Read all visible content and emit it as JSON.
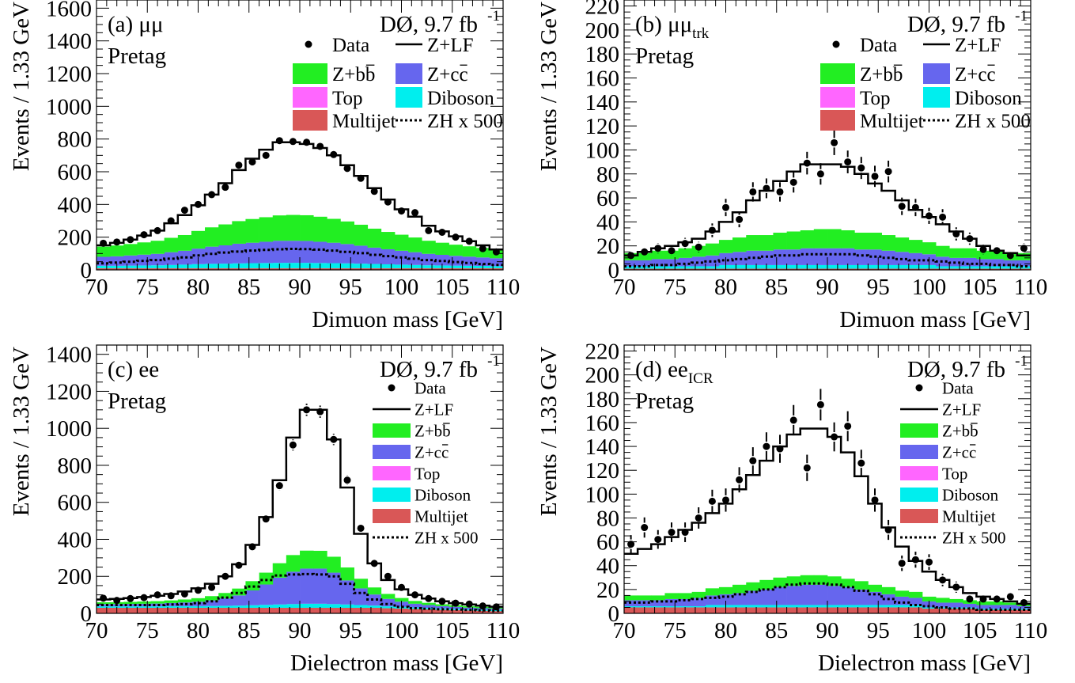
{
  "figure": {
    "colors": {
      "zbb": "#22ee22",
      "zcc": "#6666ee",
      "top": "#ff66ff",
      "diboson": "#00eeee",
      "multijet": "#d95757",
      "line": "#000000"
    }
  },
  "chart_data": [
    {
      "type": "histogram",
      "panel_label": "(a) μμ",
      "selection": "Pretag",
      "experiment": "DØ, 9.7 fb",
      "lumi_exponent": "-1",
      "xlabel": "Dimuon mass [GeV]",
      "ylabel": "Events / 1.33 GeV",
      "xlim": [
        70,
        110
      ],
      "ylim": [
        0,
        1650
      ],
      "xticks": [
        70,
        75,
        80,
        85,
        90,
        95,
        100,
        105,
        110
      ],
      "yticks": [
        0,
        200,
        400,
        600,
        800,
        1000,
        1200,
        1400,
        1600
      ],
      "bin_width": 1.333,
      "bin_centers": [
        70.67,
        72.0,
        73.33,
        74.67,
        76.0,
        77.33,
        78.67,
        80.0,
        81.33,
        82.67,
        84.0,
        85.33,
        86.67,
        88.0,
        89.33,
        90.67,
        92.0,
        93.33,
        94.67,
        96.0,
        97.33,
        98.67,
        100.0,
        101.33,
        102.67,
        104.0,
        105.33,
        106.67,
        108.0,
        109.33
      ],
      "data_points": [
        163,
        170,
        185,
        215,
        240,
        300,
        365,
        400,
        460,
        505,
        640,
        660,
        700,
        790,
        785,
        780,
        755,
        705,
        620,
        560,
        480,
        415,
        360,
        350,
        240,
        230,
        200,
        175,
        130,
        110
      ],
      "zlf_total": [
        150,
        165,
        185,
        210,
        240,
        285,
        335,
        395,
        460,
        530,
        610,
        680,
        735,
        780,
        780,
        770,
        745,
        700,
        640,
        575,
        500,
        430,
        370,
        325,
        270,
        235,
        205,
        175,
        150,
        125
      ],
      "stack": {
        "multijet": [
          10,
          10,
          10,
          10,
          10,
          10,
          10,
          10,
          10,
          10,
          10,
          10,
          10,
          10,
          10,
          10,
          10,
          10,
          10,
          10,
          10,
          10,
          10,
          10,
          10,
          10,
          10,
          10,
          10,
          10
        ],
        "diboson": [
          15,
          15,
          16,
          17,
          18,
          20,
          22,
          25,
          27,
          28,
          30,
          31,
          32,
          33,
          33,
          33,
          32,
          31,
          30,
          28,
          26,
          24,
          22,
          20,
          18,
          17,
          16,
          15,
          14,
          13
        ],
        "zcc": [
          55,
          58,
          62,
          66,
          70,
          78,
          85,
          95,
          105,
          112,
          120,
          125,
          130,
          135,
          135,
          134,
          130,
          125,
          118,
          110,
          100,
          92,
          85,
          78,
          70,
          65,
          60,
          56,
          52,
          48
        ],
        "zbb": [
          62,
          66,
          70,
          75,
          80,
          88,
          96,
          108,
          118,
          128,
          138,
          145,
          150,
          155,
          158,
          157,
          153,
          146,
          138,
          128,
          116,
          106,
          98,
          90,
          80,
          74,
          68,
          63,
          58,
          53
        ]
      },
      "zh_x500": [
        40,
        45,
        50,
        55,
        60,
        68,
        76,
        88,
        98,
        106,
        112,
        118,
        122,
        126,
        128,
        127,
        124,
        118,
        110,
        102,
        92,
        84,
        76,
        68,
        60,
        54,
        48,
        42,
        36,
        30
      ],
      "legend": {
        "entries": [
          "Data",
          "Z+LF",
          "Z+b",
          "Z+c",
          "Top",
          "Diboson",
          "Multijet",
          "ZH x 500"
        ],
        "bbar": "b",
        "cbar": "c"
      }
    },
    {
      "type": "histogram",
      "panel_label": "(b) μμ",
      "panel_label_sub": "trk",
      "selection": "Pretag",
      "experiment": "DØ, 9.7 fb",
      "lumi_exponent": "-1",
      "xlabel": "Dimuon mass [GeV]",
      "ylabel": "Events / 1.33 GeV",
      "xlim": [
        70,
        110
      ],
      "ylim": [
        0,
        225
      ],
      "xticks": [
        70,
        75,
        80,
        85,
        90,
        95,
        100,
        105,
        110
      ],
      "yticks": [
        0,
        20,
        40,
        60,
        80,
        100,
        120,
        140,
        160,
        180,
        200,
        220
      ],
      "bin_width": 1.333,
      "bin_centers": [
        70.67,
        72.0,
        73.33,
        74.67,
        76.0,
        77.33,
        78.67,
        80.0,
        81.33,
        82.67,
        84.0,
        85.33,
        86.67,
        88.0,
        89.33,
        90.67,
        92.0,
        93.33,
        94.67,
        96.0,
        97.33,
        98.67,
        100.0,
        101.33,
        102.67,
        104.0,
        105.33,
        106.67,
        108.0,
        109.33
      ],
      "data_points": [
        12,
        15,
        18,
        16,
        22,
        19,
        33,
        52,
        42,
        65,
        68,
        65,
        73,
        89,
        80,
        106,
        90,
        85,
        78,
        82,
        53,
        52,
        45,
        44,
        30,
        26,
        17,
        16,
        12,
        18
      ],
      "zlf_total": [
        12,
        15,
        18,
        20,
        23,
        26,
        32,
        40,
        48,
        58,
        66,
        74,
        82,
        88,
        88,
        88,
        86,
        80,
        72,
        66,
        58,
        50,
        44,
        38,
        32,
        26,
        20,
        16,
        14,
        12
      ],
      "stack": {
        "multijet": [
          1,
          1,
          1,
          1,
          1,
          1,
          1,
          1,
          1,
          1,
          1,
          1,
          1,
          1,
          1,
          1,
          1,
          1,
          1,
          1,
          1,
          1,
          1,
          1,
          1,
          1,
          1,
          1,
          1,
          1
        ],
        "diboson": [
          2,
          2,
          2,
          2,
          2,
          2,
          2,
          3,
          3,
          3,
          3,
          3,
          3,
          3,
          3,
          3,
          3,
          3,
          3,
          3,
          3,
          3,
          3,
          2,
          2,
          2,
          2,
          2,
          2,
          2
        ],
        "zcc": [
          5,
          5,
          6,
          6,
          7,
          8,
          9,
          10,
          11,
          12,
          12,
          13,
          13,
          14,
          14,
          14,
          14,
          13,
          13,
          12,
          11,
          10,
          9,
          8,
          7,
          7,
          6,
          6,
          5,
          5
        ],
        "zbb": [
          6,
          6,
          7,
          7,
          8,
          9,
          10,
          11,
          12,
          13,
          13,
          14,
          15,
          15,
          16,
          16,
          15,
          14,
          14,
          13,
          12,
          11,
          10,
          9,
          8,
          8,
          7,
          7,
          6,
          6
        ]
      },
      "zh_x500": [
        3,
        3,
        4,
        4,
        5,
        6,
        7,
        8,
        9,
        10,
        11,
        12,
        12,
        13,
        13,
        13,
        13,
        12,
        11,
        10,
        9,
        8,
        8,
        7,
        6,
        5,
        5,
        4,
        4,
        3
      ],
      "legend": {
        "entries": [
          "Data",
          "Z+LF",
          "Z+b",
          "Z+c",
          "Top",
          "Diboson",
          "Multijet",
          "ZH x 500"
        ],
        "bbar": "b",
        "cbar": "c"
      }
    },
    {
      "type": "histogram",
      "panel_label": "(c) ee",
      "selection": "Pretag",
      "experiment": "DØ, 9.7 fb",
      "lumi_exponent": "-1",
      "xlabel": "Dielectron mass [GeV]",
      "ylabel": "Events / 1.33 GeV",
      "xlim": [
        70,
        110
      ],
      "ylim": [
        0,
        1450
      ],
      "xticks": [
        70,
        75,
        80,
        85,
        90,
        95,
        100,
        105,
        110
      ],
      "yticks": [
        0,
        200,
        400,
        600,
        800,
        1000,
        1200,
        1400
      ],
      "bin_width": 1.333,
      "bin_centers": [
        70.67,
        72.0,
        73.33,
        74.67,
        76.0,
        77.33,
        78.67,
        80.0,
        81.33,
        82.67,
        84.0,
        85.33,
        86.67,
        88.0,
        89.33,
        90.67,
        92.0,
        93.33,
        94.67,
        96.0,
        97.33,
        98.67,
        100.0,
        101.33,
        102.67,
        104.0,
        105.33,
        106.67,
        108.0,
        109.33
      ],
      "data_points": [
        82,
        70,
        80,
        85,
        100,
        95,
        105,
        125,
        140,
        200,
        260,
        360,
        510,
        690,
        910,
        1100,
        1090,
        940,
        720,
        460,
        270,
        200,
        140,
        100,
        80,
        65,
        55,
        50,
        40,
        35
      ],
      "zlf_total": [
        75,
        78,
        82,
        88,
        95,
        105,
        118,
        135,
        160,
        200,
        265,
        370,
        520,
        720,
        950,
        1100,
        1100,
        940,
        680,
        430,
        270,
        180,
        130,
        100,
        80,
        65,
        55,
        48,
        42,
        36
      ],
      "stack": {
        "multijet": [
          30,
          30,
          30,
          30,
          30,
          30,
          30,
          30,
          30,
          30,
          30,
          30,
          30,
          30,
          30,
          30,
          30,
          30,
          30,
          30,
          30,
          28,
          26,
          24,
          22,
          20,
          18,
          16,
          14,
          12
        ],
        "diboson": [
          8,
          8,
          8,
          8,
          8,
          9,
          9,
          9,
          10,
          11,
          12,
          14,
          16,
          18,
          20,
          22,
          22,
          20,
          18,
          15,
          12,
          10,
          9,
          8,
          8,
          7,
          7,
          6,
          6,
          6
        ],
        "zcc": [
          12,
          12,
          13,
          14,
          15,
          17,
          20,
          24,
          30,
          40,
          55,
          80,
          110,
          145,
          175,
          190,
          190,
          170,
          130,
          90,
          60,
          40,
          28,
          20,
          15,
          12,
          10,
          9,
          8,
          7
        ],
        "zbb": [
          10,
          10,
          11,
          12,
          13,
          14,
          16,
          19,
          23,
          29,
          37,
          50,
          64,
          78,
          90,
          97,
          96,
          86,
          70,
          52,
          38,
          27,
          20,
          15,
          12,
          10,
          9,
          8,
          7,
          6
        ]
      },
      "zh_x500": [
        45,
        45,
        45,
        45,
        45,
        48,
        50,
        55,
        65,
        85,
        110,
        145,
        180,
        205,
        210,
        212,
        210,
        200,
        160,
        110,
        75,
        50,
        35,
        28,
        25,
        22,
        20,
        18,
        16,
        14
      ],
      "legend": {
        "entries": [
          "Data",
          "Z+LF",
          "Z+b",
          "Z+c",
          "Top",
          "Diboson",
          "Multijet",
          "ZH x 500"
        ],
        "bbar": "b",
        "cbar": "c"
      }
    },
    {
      "type": "histogram",
      "panel_label": "(d) ee",
      "panel_label_sub": "ICR",
      "selection": "Pretag",
      "experiment": "DØ, 9.7 fb",
      "lumi_exponent": "-1",
      "xlabel": "Dielectron mass [GeV]",
      "ylabel": "Events / 1.33 GeV",
      "xlim": [
        70,
        110
      ],
      "ylim": [
        0,
        225
      ],
      "xticks": [
        70,
        75,
        80,
        85,
        90,
        95,
        100,
        105,
        110
      ],
      "yticks": [
        0,
        20,
        40,
        60,
        80,
        100,
        120,
        140,
        160,
        180,
        200,
        220
      ],
      "bin_width": 1.333,
      "bin_centers": [
        70.67,
        72.0,
        73.33,
        74.67,
        76.0,
        77.33,
        78.67,
        80.0,
        81.33,
        82.67,
        84.0,
        85.33,
        86.67,
        88.0,
        89.33,
        90.67,
        92.0,
        93.33,
        94.67,
        96.0,
        97.33,
        98.67,
        100.0,
        101.33,
        102.67,
        104.0,
        105.33,
        106.67,
        108.0,
        109.33
      ],
      "data_points": [
        58,
        72,
        62,
        68,
        68,
        80,
        94,
        95,
        112,
        128,
        140,
        138,
        162,
        122,
        175,
        148,
        157,
        126,
        95,
        70,
        42,
        45,
        43,
        28,
        22,
        12,
        12,
        12,
        14,
        9
      ],
      "zlf_total": [
        50,
        54,
        58,
        64,
        70,
        76,
        84,
        92,
        104,
        116,
        128,
        140,
        150,
        155,
        155,
        148,
        135,
        115,
        92,
        72,
        56,
        44,
        35,
        28,
        22,
        17,
        14,
        12,
        10,
        8
      ],
      "stack": {
        "multijet": [
          5,
          5,
          5,
          5,
          5,
          5,
          5,
          5,
          5,
          5,
          5,
          5,
          5,
          5,
          5,
          5,
          5,
          5,
          5,
          5,
          5,
          5,
          4,
          4,
          4,
          4,
          3,
          3,
          3,
          3
        ],
        "diboson": [
          1,
          1,
          1,
          1,
          1,
          1,
          2,
          2,
          2,
          2,
          2,
          2,
          2,
          2,
          2,
          2,
          2,
          2,
          2,
          2,
          2,
          2,
          1,
          1,
          1,
          1,
          1,
          1,
          1,
          1
        ],
        "zcc": [
          5,
          5,
          5,
          6,
          6,
          7,
          8,
          9,
          10,
          12,
          13,
          15,
          16,
          17,
          17,
          16,
          15,
          13,
          11,
          9,
          7,
          6,
          5,
          4,
          4,
          3,
          3,
          3,
          3,
          2
        ],
        "zbb": [
          4,
          4,
          4,
          5,
          5,
          5,
          6,
          6,
          7,
          7,
          8,
          8,
          8,
          8,
          8,
          8,
          7,
          7,
          6,
          6,
          5,
          5,
          4,
          4,
          3,
          3,
          3,
          3,
          2,
          2
        ]
      },
      "zh_x500": [
        9,
        9,
        10,
        10,
        11,
        12,
        13,
        14,
        16,
        18,
        20,
        22,
        24,
        25,
        25,
        24,
        22,
        19,
        16,
        12,
        9,
        7,
        6,
        5,
        4,
        4,
        3,
        3,
        3,
        3
      ],
      "legend": {
        "entries": [
          "Data",
          "Z+LF",
          "Z+b",
          "Z+c",
          "Top",
          "Diboson",
          "Multijet",
          "ZH x 500"
        ],
        "bbar": "b",
        "cbar": "c"
      }
    }
  ]
}
